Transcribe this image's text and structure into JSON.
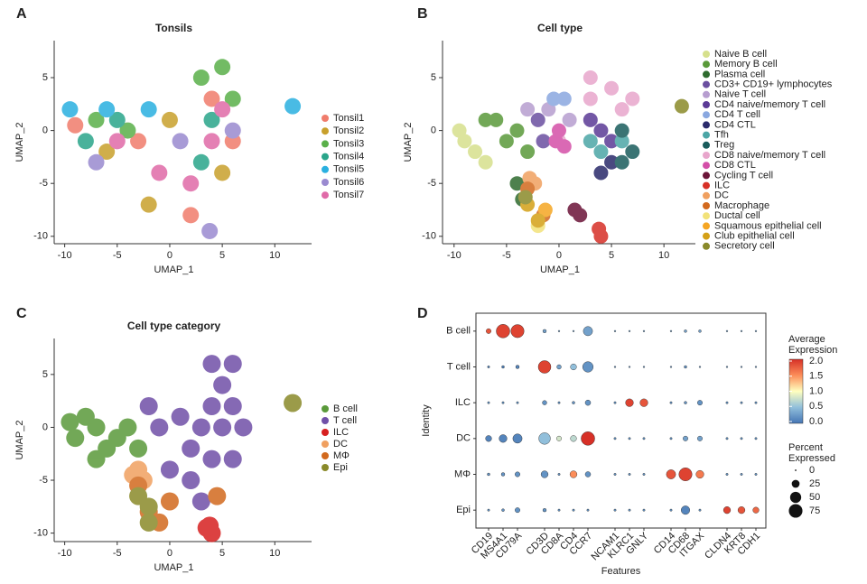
{
  "chart_data": [
    {
      "type": "scatter",
      "panel": "A",
      "title": "Tonsils",
      "xlabel": "UMAP_1",
      "ylabel": "UMAP_2",
      "xlim": [
        -11,
        13.5
      ],
      "ylim": [
        -10.7,
        8.5
      ],
      "xticks": [
        -10,
        -5,
        0,
        5,
        10
      ],
      "yticks": [
        -10,
        -5,
        0,
        5
      ],
      "series": [
        {
          "name": "Tonsil1",
          "color": "#f07c6c",
          "x": [
            -9,
            -3,
            4,
            2,
            6
          ],
          "y": [
            0.5,
            -1,
            3,
            -8,
            -1
          ]
        },
        {
          "name": "Tonsil2",
          "color": "#c8a02c",
          "x": [
            -6,
            0,
            5,
            -2
          ],
          "y": [
            -2,
            1,
            -4,
            -7
          ]
        },
        {
          "name": "Tonsil3",
          "color": "#5ab04a",
          "x": [
            -7,
            -4,
            3,
            6,
            5
          ],
          "y": [
            1,
            0,
            5,
            3,
            6
          ]
        },
        {
          "name": "Tonsil4",
          "color": "#2aa58a",
          "x": [
            -8,
            -5,
            4,
            3
          ],
          "y": [
            -1,
            1,
            1,
            -3
          ]
        },
        {
          "name": "Tonsil5",
          "color": "#2ab0e0",
          "x": [
            -9.5,
            -6,
            -2,
            11.7
          ],
          "y": [
            2,
            2,
            2,
            2.3
          ]
        },
        {
          "name": "Tonsil6",
          "color": "#9a8ad0",
          "x": [
            -7,
            1,
            6,
            3.8
          ],
          "y": [
            -3,
            -1,
            0,
            -9.5
          ]
        },
        {
          "name": "Tonsil7",
          "color": "#e06aa8",
          "x": [
            -5,
            4,
            5,
            2,
            -1
          ],
          "y": [
            -1,
            -1,
            2,
            -5,
            -4
          ]
        }
      ]
    },
    {
      "type": "scatter",
      "panel": "B",
      "title": "Cell type",
      "xlabel": "UMAP_1",
      "ylabel": "UMAP_2",
      "xlim": [
        -11.1,
        13
      ],
      "ylim": [
        -10.7,
        8.5
      ],
      "xticks": [
        -10,
        -5,
        0,
        5,
        10
      ],
      "yticks": [
        -10,
        -5,
        0,
        5
      ],
      "series": [
        {
          "name": "Naive B cell",
          "color": "#d6e08c",
          "x": [
            -9,
            -8,
            -7,
            -9.5
          ],
          "y": [
            -1,
            -2,
            -3,
            0
          ]
        },
        {
          "name": "Memory B cell",
          "color": "#5a9a3a",
          "x": [
            -6,
            -5,
            -4,
            -7,
            -3
          ],
          "y": [
            1,
            -1,
            0,
            1,
            -2
          ]
        },
        {
          "name": "Plasma cell",
          "color": "#2e6b2e",
          "x": [
            -4,
            -3.5
          ],
          "y": [
            -5,
            -6.5
          ]
        },
        {
          "name": "CD3+ CD19+ lymphocytes",
          "color": "#6b4fa0",
          "x": [
            -1.5,
            -2
          ],
          "y": [
            -1,
            1
          ]
        },
        {
          "name": "Naive T cell",
          "color": "#b79ed0",
          "x": [
            -1,
            -3,
            1
          ],
          "y": [
            2,
            2,
            1
          ]
        },
        {
          "name": "CD4 naive/memory T cell",
          "color": "#5b3a96",
          "x": [
            4,
            5,
            3
          ],
          "y": [
            0,
            -1,
            1
          ]
        },
        {
          "name": "CD4 T cell",
          "color": "#8aa8e0",
          "x": [
            -0.5,
            0.5
          ],
          "y": [
            3,
            3
          ]
        },
        {
          "name": "CD4 CTL",
          "color": "#2a2a6b",
          "x": [
            5,
            4
          ],
          "y": [
            -3,
            -4
          ]
        },
        {
          "name": "Tfh",
          "color": "#4ca6a6",
          "x": [
            3,
            4,
            6
          ],
          "y": [
            -1,
            -2,
            -1
          ]
        },
        {
          "name": "Treg",
          "color": "#1a5c5c",
          "x": [
            6,
            7,
            6
          ],
          "y": [
            -3,
            -2,
            0
          ]
        },
        {
          "name": "CD8 naive/memory T cell",
          "color": "#e8a6cc",
          "x": [
            3,
            5,
            3,
            6,
            7,
            0
          ],
          "y": [
            5,
            4,
            3,
            2,
            3,
            -1
          ]
        },
        {
          "name": "CD8 CTL",
          "color": "#d44fa8",
          "x": [
            -0.3,
            0.5,
            0
          ],
          "y": [
            -1,
            -1.5,
            0
          ]
        },
        {
          "name": "Cycling T cell",
          "color": "#6b1438",
          "x": [
            1.5,
            2
          ],
          "y": [
            -7.5,
            -8
          ]
        },
        {
          "name": "ILC",
          "color": "#d73027",
          "x": [
            3.8,
            4
          ],
          "y": [
            -9.3,
            -10
          ]
        },
        {
          "name": "DC",
          "color": "#f0a060",
          "x": [
            -2.8,
            -2.3
          ],
          "y": [
            -4.5,
            -5
          ]
        },
        {
          "name": "Macrophage",
          "color": "#d2691e",
          "x": [
            -1.5,
            -3
          ],
          "y": [
            -8,
            -5.5
          ]
        },
        {
          "name": "Ductal cell",
          "color": "#f2e27a",
          "x": [
            -2
          ],
          "y": [
            -9
          ]
        },
        {
          "name": "Squamous epithelial cell",
          "color": "#f5a623",
          "x": [
            -1.3
          ],
          "y": [
            -7.5
          ]
        },
        {
          "name": "Club epithelial cell",
          "color": "#d4a017",
          "x": [
            -2,
            -3
          ],
          "y": [
            -8.5,
            -7
          ]
        },
        {
          "name": "Secretory cell",
          "color": "#8a8a2a",
          "x": [
            11.7,
            -3.2
          ],
          "y": [
            2.3,
            -6.3
          ]
        }
      ]
    },
    {
      "type": "scatter",
      "panel": "C",
      "title": "Cell type category",
      "xlabel": "UMAP_1",
      "ylabel": "UMAP_2",
      "xlim": [
        -11,
        13.5
      ],
      "ylim": [
        -10.8,
        8.4
      ],
      "xticks": [
        -10,
        -5,
        0,
        5,
        10
      ],
      "yticks": [
        -10,
        -5,
        0,
        5
      ],
      "series": [
        {
          "name": "B cell",
          "color": "#5a9a3a",
          "x": [
            -9,
            -7,
            -5,
            -8,
            -6,
            -4,
            -3,
            -7,
            -9.5
          ],
          "y": [
            -1,
            0,
            -1,
            1,
            -2,
            0,
            -2,
            -3,
            0.5
          ]
        },
        {
          "name": "T cell",
          "color": "#7050a8",
          "x": [
            4,
            5,
            6,
            4,
            3,
            5,
            7,
            2,
            4,
            6,
            2,
            3,
            0,
            -1,
            1,
            -2,
            6
          ],
          "y": [
            6,
            4,
            2,
            2,
            0,
            0,
            0,
            -2,
            -3,
            -3,
            -5,
            -7,
            -4,
            0,
            1,
            2,
            6
          ]
        },
        {
          "name": "ILC",
          "color": "#d72020",
          "x": [
            3.8,
            4,
            3.5
          ],
          "y": [
            -9.3,
            -10,
            -9.5
          ]
        },
        {
          "name": "DC",
          "color": "#f0a060",
          "x": [
            -3,
            -2.5,
            -3.5
          ],
          "y": [
            -4,
            -5,
            -4.5
          ]
        },
        {
          "name": "MΦ",
          "color": "#d2691e",
          "x": [
            -2,
            -1,
            -3,
            4.5,
            0
          ],
          "y": [
            -8,
            -9,
            -5.5,
            -6.5,
            -7
          ]
        },
        {
          "name": "Epi",
          "color": "#8a8a2a",
          "x": [
            -2,
            -2,
            11.7,
            -3
          ],
          "y": [
            -7.5,
            -9,
            2.3,
            -6.5
          ]
        }
      ]
    },
    {
      "type": "dotplot",
      "panel": "D",
      "xlabel": "Features",
      "ylabel": "Identity",
      "categories": [
        "CD19",
        "MS4A1",
        "CD79A",
        "CD3D",
        "CD8A",
        "CD4",
        "CCR7",
        "NCAM1",
        "KLRC1",
        "GNLY",
        "CD14",
        "CD68",
        "ITGAX",
        "CLDN4",
        "KRT8",
        "CDH1"
      ],
      "clim": [
        0,
        2
      ],
      "colorscale": [
        "#4575b4",
        "#91bfdb",
        "#ffffbf",
        "#fc8d59",
        "#d73027"
      ],
      "color_legend_title": [
        "Average",
        "Expression"
      ],
      "colorbar_ticks": [
        {
          "value": 0,
          "label": "0.0"
        },
        {
          "value": 0.5,
          "label": "0.5"
        },
        {
          "value": 1,
          "label": "1.0"
        },
        {
          "value": 1.5,
          "label": "1.5"
        },
        {
          "value": 2,
          "label": "2.0"
        }
      ],
      "size_legend_title": [
        "Percent",
        "Expressed"
      ],
      "size_legend": [
        0,
        25,
        50,
        75
      ],
      "series": [
        {
          "name": "B cell",
          "values": [
            1.8,
            1.9,
            1.9,
            0.3,
            0.3,
            0.3,
            0.3,
            0.3,
            0.3,
            0.3,
            0.3,
            0.3,
            0.3,
            0.3,
            0.3,
            0.3
          ],
          "percent": [
            10,
            75,
            70,
            5,
            1,
            1,
            35,
            1,
            1,
            1,
            1,
            3,
            3,
            1,
            1,
            1
          ]
        },
        {
          "name": "T cell",
          "values": [
            0.1,
            0.1,
            0.1,
            1.9,
            0.3,
            0.5,
            0.2,
            0.2,
            0.2,
            0.2,
            0.2,
            0.2,
            0.2,
            0.2,
            0.2,
            0.2
          ],
          "percent": [
            2,
            3,
            5,
            65,
            8,
            15,
            45,
            1,
            1,
            1,
            1,
            3,
            1,
            1,
            1,
            1
          ]
        },
        {
          "name": "ILC",
          "values": [
            0.2,
            0.2,
            0.2,
            0.2,
            0.2,
            0.2,
            0.2,
            0.2,
            1.9,
            1.8,
            0.2,
            0.2,
            0.2,
            0.2,
            0.2,
            0.2
          ],
          "percent": [
            2,
            2,
            2,
            8,
            2,
            3,
            12,
            2,
            25,
            25,
            2,
            3,
            10,
            2,
            2,
            2
          ]
        },
        {
          "name": "DC",
          "values": [
            0.1,
            0.1,
            0.1,
            0.5,
            0.8,
            0.7,
            2.0,
            0.2,
            0.2,
            0.2,
            0.2,
            0.3,
            0.3,
            0.2,
            0.2,
            0.2
          ],
          "percent": [
            15,
            25,
            35,
            55,
            10,
            15,
            75,
            2,
            2,
            2,
            2,
            10,
            10,
            2,
            2,
            2
          ]
        },
        {
          "name": "MΦ",
          "values": [
            0.2,
            0.2,
            0.2,
            0.2,
            0.2,
            1.5,
            0.2,
            0.2,
            0.2,
            0.2,
            1.8,
            1.9,
            1.6,
            0.2,
            0.2,
            0.2
          ],
          "percent": [
            3,
            5,
            10,
            20,
            2,
            20,
            12,
            2,
            2,
            2,
            35,
            70,
            25,
            2,
            2,
            2
          ]
        },
        {
          "name": "Epi",
          "values": [
            0.2,
            0.2,
            0.2,
            0.2,
            0.2,
            0.2,
            0.2,
            0.2,
            0.2,
            0.2,
            0.2,
            0.1,
            0.2,
            1.9,
            1.8,
            1.7
          ],
          "percent": [
            2,
            3,
            10,
            5,
            2,
            2,
            2,
            2,
            2,
            2,
            2,
            30,
            2,
            20,
            20,
            15
          ]
        }
      ]
    }
  ]
}
